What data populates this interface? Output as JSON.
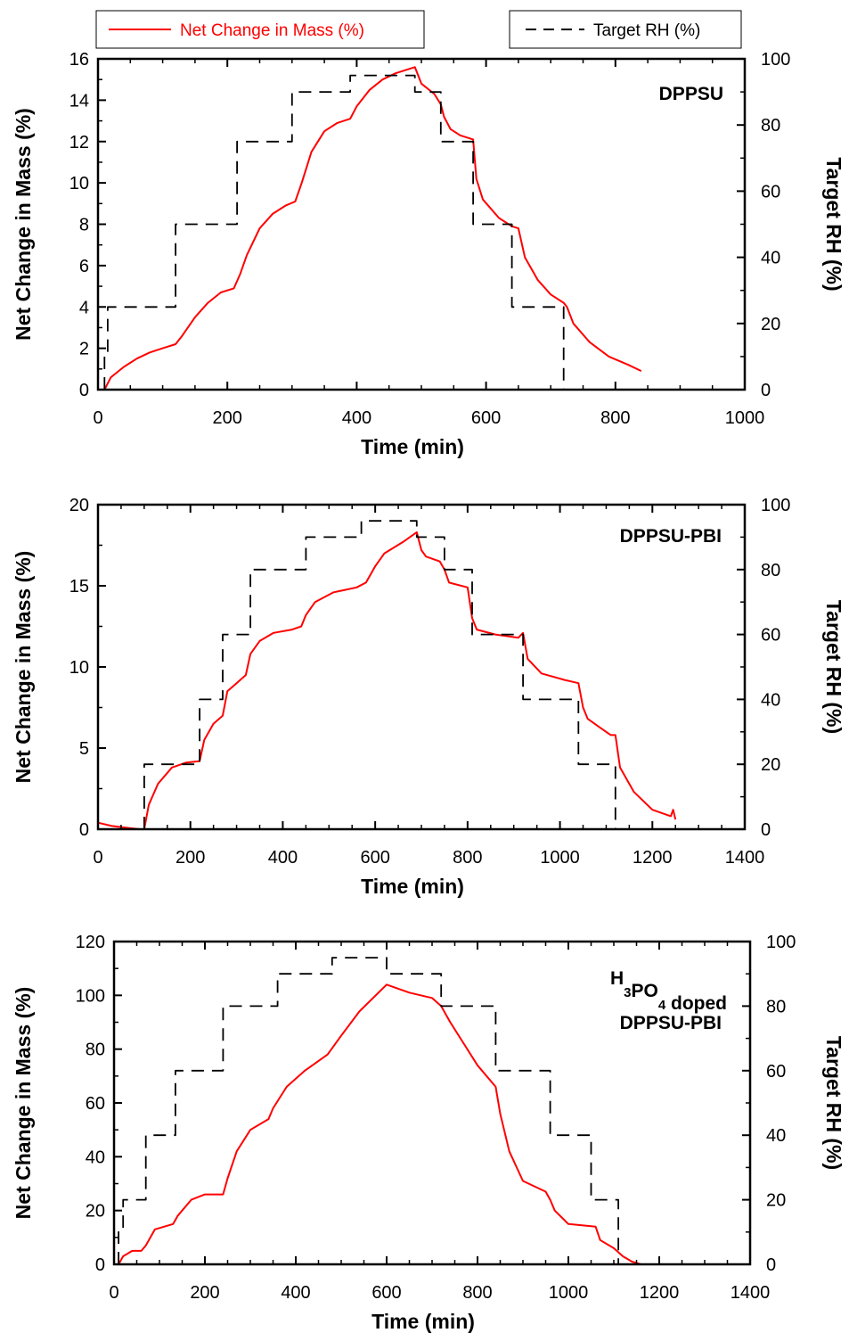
{
  "legend": {
    "mass_label": "Net Change in Mass (%)",
    "rh_label": "Target RH (%)"
  },
  "colors": {
    "mass": "#ff0000",
    "rh": "#000000",
    "axes": "#000000"
  },
  "chart_data": [
    {
      "type": "line",
      "label_lines": [
        "DPPSU"
      ],
      "xlabel": "Time (min)",
      "ylabel": "Net Change in Mass (%)",
      "y2label": "Target RH (%)",
      "xlim": [
        0,
        1000
      ],
      "ylim": [
        0,
        16
      ],
      "y2lim": [
        0,
        100
      ],
      "xticks": [
        0,
        200,
        400,
        600,
        800,
        1000
      ],
      "yticks": [
        0,
        2,
        4,
        6,
        8,
        10,
        12,
        14,
        16
      ],
      "y2ticks": [
        0,
        20,
        40,
        60,
        80,
        100
      ],
      "series": [
        {
          "axis": "left",
          "x": [
            10,
            20,
            40,
            60,
            80,
            100,
            120,
            130,
            150,
            170,
            190,
            210,
            220,
            230,
            250,
            270,
            290,
            305,
            315,
            330,
            350,
            370,
            390,
            400,
            420,
            440,
            460,
            480,
            490,
            500,
            520,
            530,
            535,
            545,
            560,
            580,
            585,
            595,
            620,
            640,
            650,
            660,
            680,
            700,
            720,
            725,
            735,
            760,
            790,
            820,
            840
          ],
          "y": [
            0.0,
            0.6,
            1.1,
            1.5,
            1.8,
            2.0,
            2.2,
            2.6,
            3.5,
            4.2,
            4.7,
            4.9,
            5.6,
            6.5,
            7.8,
            8.5,
            8.9,
            9.1,
            10.0,
            11.5,
            12.5,
            12.9,
            13.1,
            13.7,
            14.5,
            15.0,
            15.3,
            15.5,
            15.6,
            14.8,
            14.3,
            13.8,
            13.2,
            12.6,
            12.3,
            12.1,
            10.2,
            9.2,
            8.3,
            7.9,
            7.8,
            6.4,
            5.3,
            4.6,
            4.2,
            4.0,
            3.2,
            2.3,
            1.6,
            1.2,
            0.9
          ]
        },
        {
          "axis": "right",
          "x": [
            10,
            10,
            15,
            15,
            120,
            120,
            215,
            215,
            300,
            300,
            390,
            390,
            490,
            490,
            530,
            530,
            580,
            580,
            640,
            640,
            720,
            720
          ],
          "y": [
            0,
            10,
            10,
            25,
            25,
            50,
            50,
            75,
            75,
            90,
            90,
            95,
            95,
            90,
            90,
            75,
            75,
            50,
            50,
            25,
            25,
            0
          ]
        }
      ]
    },
    {
      "type": "line",
      "label_lines": [
        "DPPSU-PBI"
      ],
      "xlabel": "Time (min)",
      "ylabel": "Net Change in Mass (%)",
      "y2label": "Target RH (%)",
      "xlim": [
        0,
        1400
      ],
      "ylim": [
        0,
        20
      ],
      "y2lim": [
        0,
        100
      ],
      "xticks": [
        0,
        200,
        400,
        600,
        800,
        1000,
        1200,
        1400
      ],
      "yticks": [
        0,
        5,
        10,
        15,
        20
      ],
      "y2ticks": [
        0,
        20,
        40,
        60,
        80,
        100
      ],
      "series": [
        {
          "axis": "left",
          "x": [
            0,
            30,
            60,
            90,
            100,
            110,
            130,
            160,
            190,
            220,
            230,
            250,
            270,
            280,
            300,
            320,
            330,
            350,
            380,
            420,
            440,
            450,
            470,
            510,
            560,
            580,
            600,
            620,
            660,
            690,
            700,
            710,
            740,
            750,
            760,
            800,
            810,
            820,
            860,
            910,
            920,
            930,
            960,
            1010,
            1040,
            1050,
            1060,
            1090,
            1110,
            1120,
            1130,
            1160,
            1200,
            1240,
            1245,
            1250
          ],
          "y": [
            0.4,
            0.2,
            0.1,
            0.0,
            0.0,
            1.5,
            2.8,
            3.8,
            4.1,
            4.2,
            5.5,
            6.5,
            7.0,
            8.5,
            9.0,
            9.5,
            10.8,
            11.6,
            12.1,
            12.3,
            12.5,
            13.2,
            14.0,
            14.6,
            14.9,
            15.2,
            16.2,
            17.0,
            17.7,
            18.3,
            17.2,
            16.8,
            16.5,
            16.0,
            15.2,
            14.9,
            13.0,
            12.3,
            12.0,
            11.8,
            12.1,
            10.5,
            9.6,
            9.2,
            9.0,
            7.5,
            6.8,
            6.2,
            5.8,
            5.8,
            3.8,
            2.3,
            1.2,
            0.8,
            1.2,
            0.6
          ]
        },
        {
          "axis": "right",
          "x": [
            100,
            100,
            220,
            220,
            270,
            270,
            330,
            330,
            450,
            450,
            570,
            570,
            690,
            690,
            750,
            750,
            810,
            810,
            920,
            920,
            1040,
            1040,
            1120,
            1120
          ],
          "y": [
            0,
            20,
            20,
            40,
            40,
            60,
            60,
            80,
            80,
            90,
            90,
            95,
            95,
            90,
            90,
            80,
            80,
            60,
            60,
            40,
            40,
            20,
            20,
            0
          ]
        }
      ]
    },
    {
      "type": "line",
      "label_lines": [
        "H3PO4 doped",
        "DPPSU-PBI"
      ],
      "label_rich": {
        "line1": [
          {
            "text": "H",
            "sub": false
          },
          {
            "text": "3",
            "sub": true
          },
          {
            "text": "PO",
            "sub": false
          },
          {
            "text": "4",
            "sub": true
          },
          {
            "text": " doped",
            "sub": false
          }
        ],
        "line2": "DPPSU-PBI"
      },
      "xlabel": "Time (min)",
      "ylabel": "Net Change in Mass (%)",
      "y2label": "Target RH (%)",
      "xlim": [
        0,
        1400
      ],
      "ylim": [
        0,
        120
      ],
      "y2lim": [
        0,
        100
      ],
      "xticks": [
        0,
        200,
        400,
        600,
        800,
        1000,
        1200,
        1400
      ],
      "yticks": [
        0,
        20,
        40,
        60,
        80,
        100,
        120
      ],
      "y2ticks": [
        0,
        20,
        40,
        60,
        80,
        100
      ],
      "series": [
        {
          "axis": "left",
          "x": [
            10,
            20,
            40,
            60,
            70,
            90,
            130,
            140,
            170,
            200,
            240,
            250,
            270,
            300,
            340,
            350,
            380,
            420,
            470,
            500,
            540,
            600,
            650,
            700,
            720,
            740,
            770,
            800,
            840,
            850,
            870,
            900,
            950,
            960,
            970,
            1000,
            1060,
            1070,
            1100,
            1120,
            1140,
            1160,
            1200,
            1250
          ],
          "y": [
            0,
            3,
            5,
            5,
            7,
            13,
            15,
            18,
            24,
            26,
            26,
            32,
            42,
            50,
            54,
            58,
            66,
            72,
            78,
            85,
            94,
            104,
            101,
            99,
            96,
            90,
            82,
            74,
            66,
            56,
            42,
            31,
            27,
            24,
            20,
            15,
            14,
            9,
            6,
            3,
            1,
            0,
            0,
            0
          ]
        },
        {
          "axis": "right",
          "x": [
            10,
            10,
            20,
            20,
            70,
            70,
            135,
            135,
            240,
            240,
            360,
            360,
            480,
            480,
            600,
            600,
            720,
            720,
            840,
            840,
            960,
            960,
            1050,
            1050,
            1110,
            1110
          ],
          "y": [
            0,
            10,
            10,
            20,
            20,
            40,
            40,
            60,
            60,
            80,
            80,
            90,
            90,
            95,
            95,
            90,
            90,
            80,
            80,
            60,
            60,
            40,
            40,
            20,
            20,
            0
          ]
        }
      ]
    }
  ]
}
